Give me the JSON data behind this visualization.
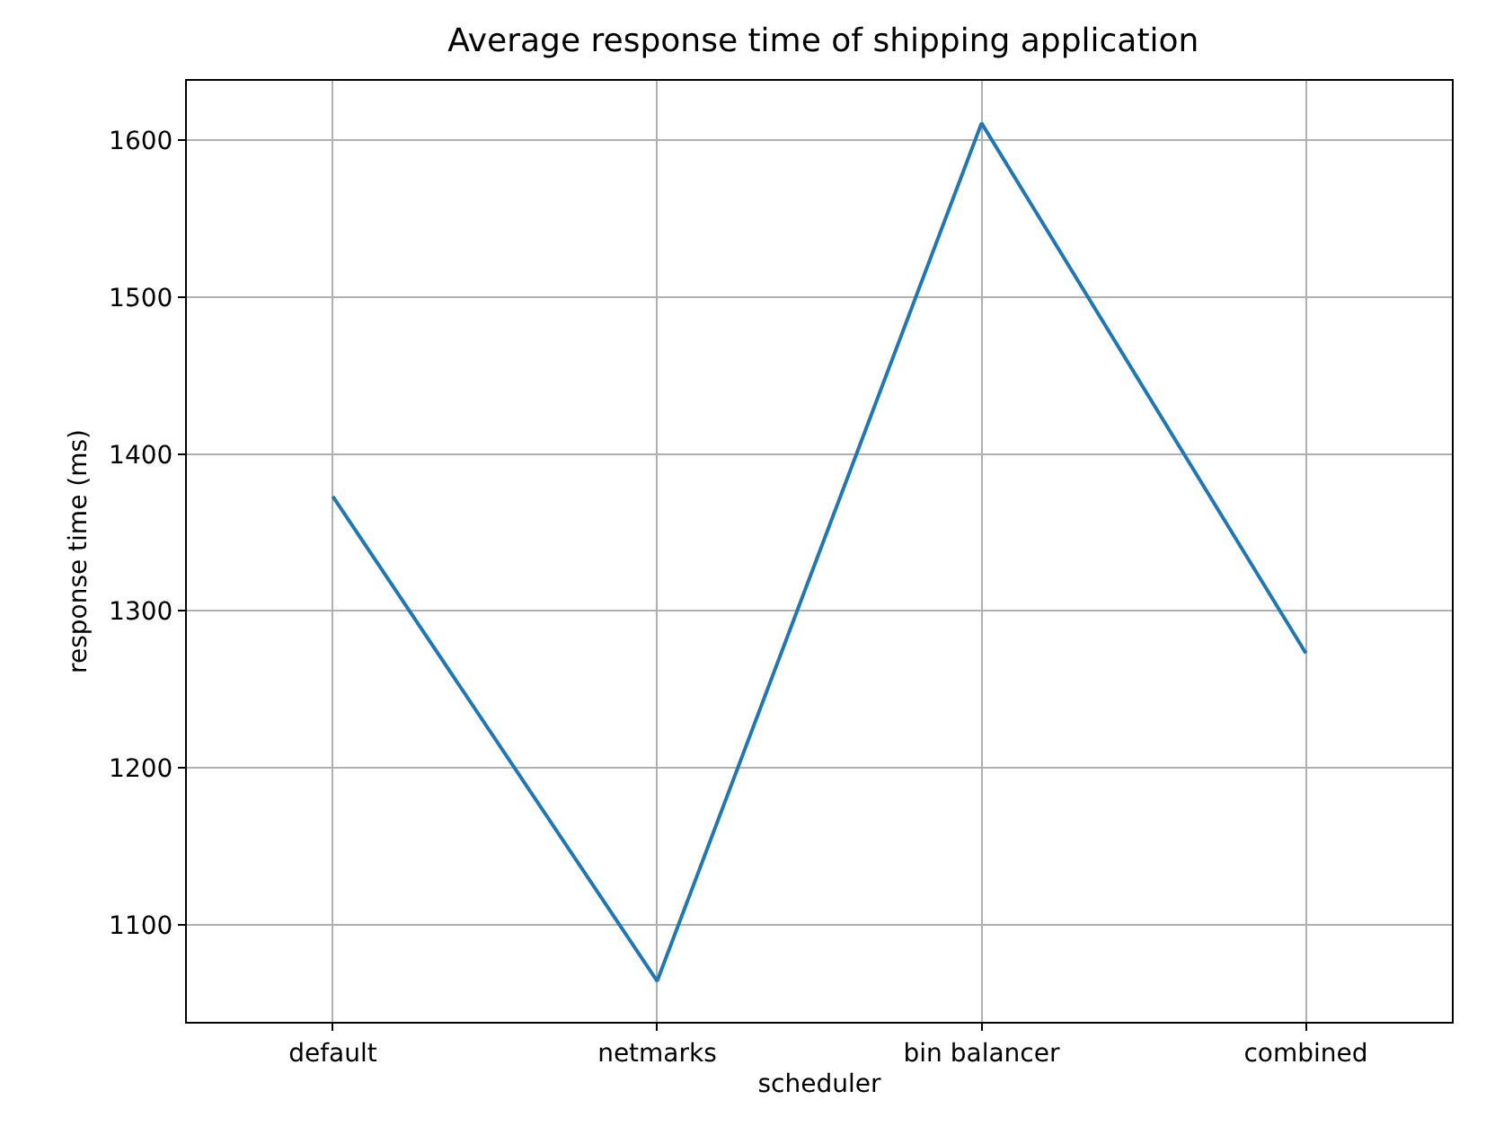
{
  "chart_data": {
    "type": "line",
    "title": "Average response time of shipping application",
    "xlabel": "scheduler",
    "ylabel": "response time (ms)",
    "categories": [
      "default",
      "netmarks",
      "bin balancer",
      "combined"
    ],
    "series": [
      {
        "color": "#1f77b4",
        "values": [
          1373,
          1064,
          1611,
          1273
        ]
      }
    ],
    "ylim": [
      1038,
      1638
    ],
    "yticks": [
      1100,
      1200,
      1300,
      1400,
      1500,
      1600
    ],
    "grid": true,
    "marker": "none"
  }
}
